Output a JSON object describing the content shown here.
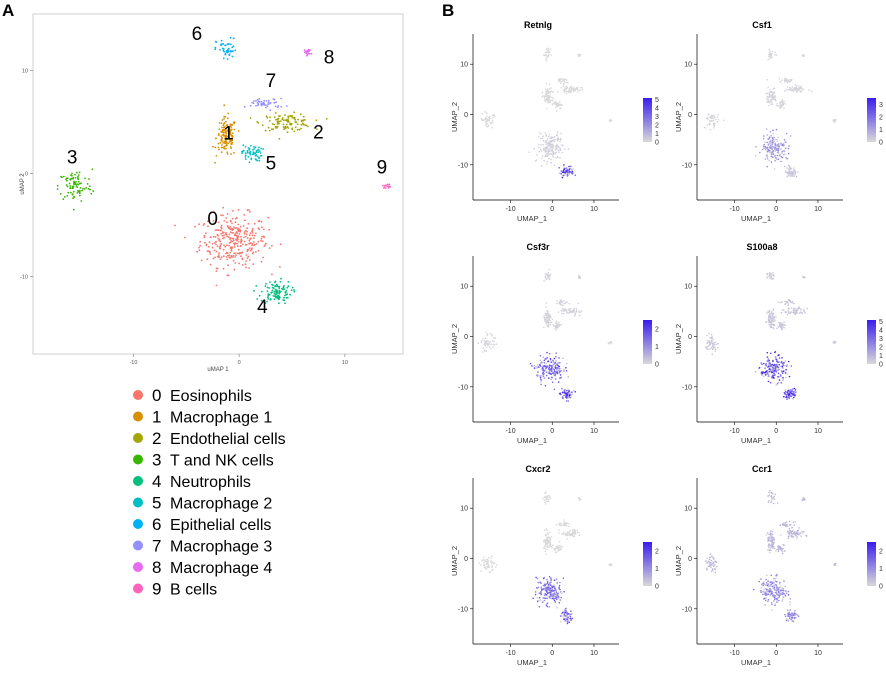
{
  "panel_labels": {
    "a": "A",
    "b": "B"
  },
  "chart_data": [
    {
      "type": "scatter",
      "panel": "A",
      "title": "",
      "xlabel": "uMAP 1",
      "ylabel": "uMAP 2",
      "xlim": [
        -19.5,
        15.5
      ],
      "ylim": [
        -17.5,
        15.5
      ],
      "xticks": [
        -10,
        0,
        10
      ],
      "yticks": [
        10,
        0,
        -10
      ],
      "tick_labels": {
        "x": [
          "-10",
          "0",
          "10"
        ],
        "y": [
          "10",
          "0",
          "-10"
        ]
      },
      "legend_title": "",
      "legend_position": "bottom-left",
      "series": [
        {
          "id": "0",
          "name": "Eosinophils",
          "color": "#F8766D",
          "center": [
            -0.5,
            -6.5
          ],
          "spread": [
            2.0,
            1.6
          ],
          "n": 320,
          "label_at": [
            -2.5,
            -5.0
          ]
        },
        {
          "id": "1",
          "name": "Macrophage 1",
          "color": "#D89000",
          "center": [
            -1.2,
            3.5
          ],
          "spread": [
            0.6,
            1.2
          ],
          "n": 140,
          "label_at": [
            -1.0,
            3.3
          ]
        },
        {
          "id": "2",
          "name": "Endothelial cells",
          "color": "#A3A500",
          "center": [
            4.5,
            5.0
          ],
          "spread": [
            1.5,
            0.5
          ],
          "n": 110,
          "label_at": [
            7.5,
            3.4
          ]
        },
        {
          "id": "3",
          "name": "T and NK cells",
          "color": "#39B600",
          "center": [
            -15.5,
            -1.2
          ],
          "spread": [
            1.0,
            1.0
          ],
          "n": 90,
          "label_at": [
            -15.8,
            1.0
          ]
        },
        {
          "id": "4",
          "name": "Neutrophils",
          "color": "#00BF7D",
          "center": [
            3.5,
            -11.5
          ],
          "spread": [
            0.9,
            0.7
          ],
          "n": 110,
          "label_at": [
            2.2,
            -13.5
          ]
        },
        {
          "id": "5",
          "name": "Macrophage 2",
          "color": "#00BFC4",
          "center": [
            1.2,
            2.0
          ],
          "spread": [
            0.6,
            0.5
          ],
          "n": 60,
          "label_at": [
            3.0,
            0.4
          ]
        },
        {
          "id": "6",
          "name": "Epithelial cells",
          "color": "#00B0F6",
          "center": [
            -1.2,
            12.0
          ],
          "spread": [
            0.6,
            0.7
          ],
          "n": 45,
          "label_at": [
            -4.0,
            13.0
          ]
        },
        {
          "id": "7",
          "name": "Macrophage 3",
          "color": "#9590FF",
          "center": [
            2.5,
            6.8
          ],
          "spread": [
            1.1,
            0.3
          ],
          "n": 50,
          "label_at": [
            3.0,
            8.4
          ]
        },
        {
          "id": "8",
          "name": "Macrophage 4",
          "color": "#E76BF3",
          "center": [
            6.5,
            11.8
          ],
          "spread": [
            0.2,
            0.2
          ],
          "n": 20,
          "label_at": [
            8.5,
            10.7
          ]
        },
        {
          "id": "9",
          "name": "B cells",
          "color": "#FF62BC",
          "center": [
            14.0,
            -1.2
          ],
          "spread": [
            0.25,
            0.12
          ],
          "n": 14,
          "label_at": [
            13.5,
            0.0
          ]
        }
      ]
    },
    {
      "type": "scatter",
      "panel": "B",
      "title": "Retnlg",
      "xlabel": "UMAP_1",
      "ylabel": "UMAP_2",
      "xlim": [
        -19,
        16
      ],
      "ylim": [
        -17,
        16
      ],
      "tick_labels": {
        "x": [
          "-10",
          "0",
          "10"
        ],
        "y": [
          "10",
          "0",
          "-10"
        ]
      },
      "legend_ticks": [
        "5",
        "4",
        "3",
        "2",
        "1",
        "0"
      ],
      "legend_max": 5.2,
      "low_color": "#d9d9d9",
      "high_color": "#3a1cf0",
      "expression": {
        "neutrophils": 4.2,
        "eosinophils": 0.3,
        "background": 0.0
      }
    },
    {
      "type": "scatter",
      "panel": "B",
      "title": "Csf1",
      "xlabel": "UMAP_1",
      "ylabel": "UMAP_2",
      "xlim": [
        -19,
        16
      ],
      "ylim": [
        -17,
        16
      ],
      "tick_labels": {
        "x": [
          "-10",
          "0",
          "10"
        ],
        "y": [
          "10",
          "0",
          "-10"
        ]
      },
      "legend_ticks": [
        "3",
        "2",
        "1",
        "0"
      ],
      "legend_max": 3.5,
      "low_color": "#d9d9d9",
      "high_color": "#3a1cf0",
      "expression": {
        "neutrophils": 0.4,
        "eosinophils": 1.4,
        "background": 0.1
      }
    },
    {
      "type": "scatter",
      "panel": "B",
      "title": "Csf3r",
      "xlabel": "UMAP_1",
      "ylabel": "UMAP_2",
      "xlim": [
        -19,
        16
      ],
      "ylim": [
        -17,
        16
      ],
      "tick_labels": {
        "x": [
          "-10",
          "0",
          "10"
        ],
        "y": [
          "10",
          "0",
          "-10"
        ]
      },
      "legend_ticks": [
        "2",
        "1",
        "0"
      ],
      "legend_max": 2.5,
      "low_color": "#d9d9d9",
      "high_color": "#3a1cf0",
      "expression": {
        "neutrophils": 2.0,
        "eosinophils": 1.7,
        "background": 0.1
      }
    },
    {
      "type": "scatter",
      "panel": "B",
      "title": "S100a8",
      "xlabel": "UMAP_1",
      "ylabel": "UMAP_2",
      "xlim": [
        -19,
        16
      ],
      "ylim": [
        -17,
        16
      ],
      "tick_labels": {
        "x": [
          "-10",
          "0",
          "10"
        ],
        "y": [
          "10",
          "0",
          "-10"
        ]
      },
      "legend_ticks": [
        "5",
        "4",
        "3",
        "2",
        "1",
        "0"
      ],
      "legend_max": 5.2,
      "low_color": "#d9d9d9",
      "high_color": "#3a1cf0",
      "expression": {
        "neutrophils": 4.8,
        "eosinophils": 4.2,
        "background": 0.6
      }
    },
    {
      "type": "scatter",
      "panel": "B",
      "title": "Cxcr2",
      "xlabel": "UMAP_1",
      "ylabel": "UMAP_2",
      "xlim": [
        -19,
        16
      ],
      "ylim": [
        -17,
        16
      ],
      "tick_labels": {
        "x": [
          "-10",
          "0",
          "10"
        ],
        "y": [
          "10",
          "0",
          "-10"
        ]
      },
      "legend_ticks": [
        "2",
        "1",
        "0"
      ],
      "legend_max": 2.5,
      "low_color": "#d9d9d9",
      "high_color": "#3a1cf0",
      "expression": {
        "neutrophils": 1.6,
        "eosinophils": 1.5,
        "background": 0.0
      }
    },
    {
      "type": "scatter",
      "panel": "B",
      "title": "Ccr1",
      "xlabel": "UMAP_1",
      "ylabel": "UMAP_2",
      "xlim": [
        -19,
        16
      ],
      "ylim": [
        -17,
        16
      ],
      "tick_labels": {
        "x": [
          "-10",
          "0",
          "10"
        ],
        "y": [
          "10",
          "0",
          "-10"
        ]
      },
      "legend_ticks": [
        "2",
        "1",
        "0"
      ],
      "legend_max": 2.5,
      "low_color": "#d9d9d9",
      "high_color": "#3a1cf0",
      "expression": {
        "neutrophils": 1.1,
        "eosinophils": 1.2,
        "background": 0.5
      }
    }
  ]
}
